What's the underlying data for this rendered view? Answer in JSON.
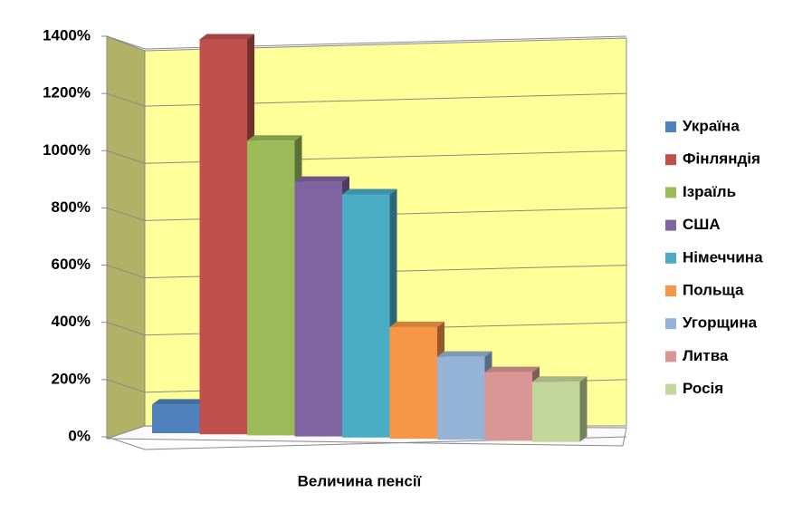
{
  "chart_data": {
    "type": "bar3d",
    "categories": [
      "Величина пенсії"
    ],
    "series": [
      {
        "name": "Україна",
        "color": "#4f81bd",
        "values": [
          100
        ]
      },
      {
        "name": "Фінляндія",
        "color": "#c0504d",
        "values": [
          1380
        ]
      },
      {
        "name": "Ізраїль",
        "color": "#9bbb59",
        "values": [
          1030
        ]
      },
      {
        "name": "США",
        "color": "#8064a2",
        "values": [
          890
        ]
      },
      {
        "name": "Німеччина",
        "color": "#4bacc6",
        "values": [
          850
        ]
      },
      {
        "name": "Польща",
        "color": "#f79646",
        "values": [
          390
        ]
      },
      {
        "name": "Угорщина",
        "color": "#95b3d7",
        "values": [
          290
        ]
      },
      {
        "name": "Литва",
        "color": "#d99694",
        "values": [
          240
        ]
      },
      {
        "name": "Росія",
        "color": "#c3d69b",
        "values": [
          210
        ]
      }
    ],
    "ylim": [
      0,
      1400
    ],
    "yticks": [
      {
        "value": 0,
        "label": "0%"
      },
      {
        "value": 200,
        "label": "200%"
      },
      {
        "value": 400,
        "label": "400%"
      },
      {
        "value": 600,
        "label": "600%"
      },
      {
        "value": 800,
        "label": "800%"
      },
      {
        "value": 1000,
        "label": "1000%"
      },
      {
        "value": 1200,
        "label": "1200%"
      },
      {
        "value": 1400,
        "label": "1400%"
      }
    ],
    "grid": true,
    "legend": "right"
  }
}
